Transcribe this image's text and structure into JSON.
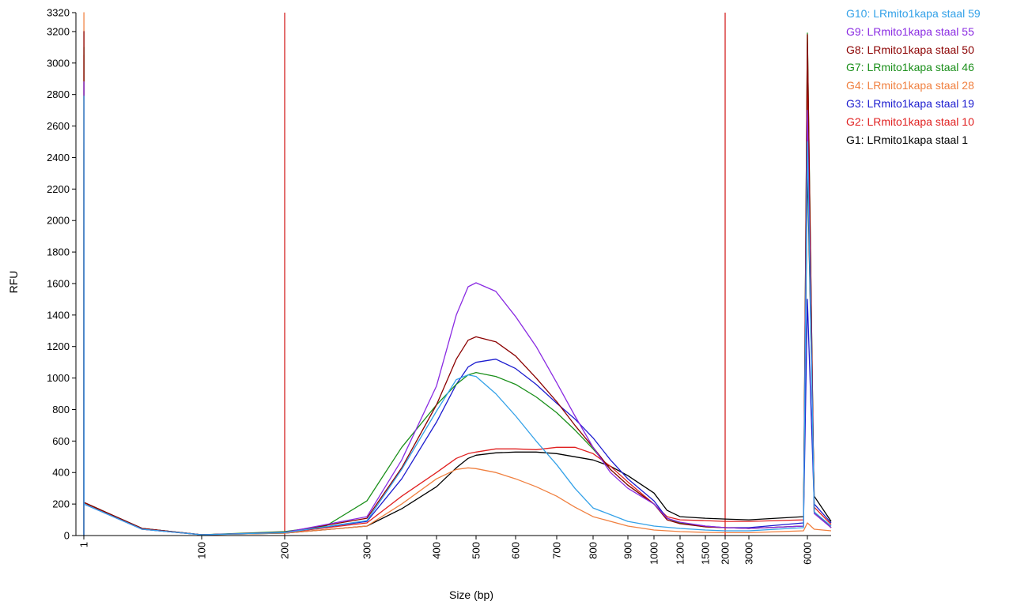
{
  "chart_data": {
    "type": "line",
    "title": "",
    "xlabel": "Size (bp)",
    "ylabel": "RFU",
    "x_scale": "marker-calibrated (non-linear)",
    "ylim": [
      0,
      3320
    ],
    "y_ticks": [
      0,
      200,
      400,
      600,
      800,
      1000,
      1200,
      1400,
      1600,
      1800,
      2000,
      2200,
      2400,
      2600,
      2800,
      3000,
      3200,
      3320
    ],
    "x_ticks": [
      1,
      100,
      200,
      300,
      400,
      500,
      600,
      700,
      800,
      900,
      1000,
      1200,
      1500,
      2000,
      3000,
      6000
    ],
    "grid": false,
    "legend_position": "top-right",
    "smear_range_markers_bp": [
      200,
      2000
    ],
    "marker_color": "#d01010",
    "series": [
      {
        "name": "G10: LRmito1kapa staal 59",
        "color": "#33a1e8",
        "points": [
          [
            1,
            0
          ],
          [
            1.05,
            2790
          ],
          [
            1.1,
            200
          ],
          [
            50,
            40
          ],
          [
            100,
            5
          ],
          [
            200,
            18
          ],
          [
            300,
            95
          ],
          [
            350,
            420
          ],
          [
            400,
            790
          ],
          [
            450,
            990
          ],
          [
            480,
            1020
          ],
          [
            500,
            1010
          ],
          [
            550,
            900
          ],
          [
            600,
            760
          ],
          [
            650,
            600
          ],
          [
            700,
            450
          ],
          [
            750,
            300
          ],
          [
            800,
            175
          ],
          [
            900,
            90
          ],
          [
            1000,
            60
          ],
          [
            1200,
            45
          ],
          [
            1500,
            35
          ],
          [
            2000,
            30
          ],
          [
            3000,
            30
          ],
          [
            5800,
            50
          ],
          [
            6000,
            2500
          ],
          [
            6200,
            150
          ],
          [
            6700,
            60
          ]
        ]
      },
      {
        "name": "G9: LRmito1kapa staal 55",
        "color": "#8a2be2",
        "points": [
          [
            1,
            0
          ],
          [
            1.05,
            2880
          ],
          [
            1.1,
            200
          ],
          [
            50,
            40
          ],
          [
            100,
            5
          ],
          [
            200,
            20
          ],
          [
            300,
            120
          ],
          [
            350,
            480
          ],
          [
            400,
            950
          ],
          [
            450,
            1400
          ],
          [
            480,
            1580
          ],
          [
            500,
            1605
          ],
          [
            550,
            1550
          ],
          [
            600,
            1390
          ],
          [
            650,
            1200
          ],
          [
            700,
            970
          ],
          [
            750,
            760
          ],
          [
            800,
            560
          ],
          [
            850,
            400
          ],
          [
            900,
            300
          ],
          [
            1000,
            200
          ],
          [
            1100,
            110
          ],
          [
            1200,
            85
          ],
          [
            1500,
            60
          ],
          [
            2000,
            50
          ],
          [
            3000,
            45
          ],
          [
            5800,
            60
          ],
          [
            6000,
            2700
          ],
          [
            6200,
            140
          ],
          [
            6700,
            50
          ]
        ]
      },
      {
        "name": "G8: LRmito1kapa staal 50",
        "color": "#8b0000",
        "points": [
          [
            1,
            0
          ],
          [
            1.05,
            3200
          ],
          [
            1.1,
            210
          ],
          [
            50,
            45
          ],
          [
            100,
            5
          ],
          [
            200,
            20
          ],
          [
            300,
            110
          ],
          [
            350,
            430
          ],
          [
            400,
            830
          ],
          [
            450,
            1120
          ],
          [
            480,
            1240
          ],
          [
            500,
            1262
          ],
          [
            550,
            1230
          ],
          [
            600,
            1140
          ],
          [
            650,
            1000
          ],
          [
            700,
            850
          ],
          [
            750,
            700
          ],
          [
            800,
            560
          ],
          [
            850,
            420
          ],
          [
            900,
            320
          ],
          [
            1000,
            200
          ],
          [
            1100,
            100
          ],
          [
            1200,
            75
          ],
          [
            1500,
            55
          ],
          [
            2000,
            50
          ],
          [
            3000,
            45
          ],
          [
            5800,
            60
          ],
          [
            6000,
            3180
          ],
          [
            6200,
            150
          ],
          [
            6700,
            50
          ]
        ]
      },
      {
        "name": "G7: LRmito1kapa staal 46",
        "color": "#1a8f1a",
        "points": [
          [
            1,
            0
          ],
          [
            1.05,
            3100
          ],
          [
            1.1,
            210
          ],
          [
            50,
            45
          ],
          [
            100,
            5
          ],
          [
            200,
            25
          ],
          [
            250,
            60
          ],
          [
            300,
            220
          ],
          [
            350,
            560
          ],
          [
            400,
            830
          ],
          [
            450,
            960
          ],
          [
            480,
            1020
          ],
          [
            500,
            1035
          ],
          [
            550,
            1010
          ],
          [
            600,
            960
          ],
          [
            650,
            880
          ],
          [
            700,
            780
          ],
          [
            750,
            670
          ],
          [
            800,
            550
          ],
          [
            850,
            420
          ],
          [
            900,
            320
          ],
          [
            1000,
            200
          ],
          [
            1100,
            110
          ],
          [
            1200,
            80
          ],
          [
            1500,
            55
          ],
          [
            2000,
            50
          ],
          [
            3000,
            45
          ],
          [
            5800,
            60
          ],
          [
            6000,
            3190
          ],
          [
            6200,
            150
          ],
          [
            6700,
            50
          ]
        ]
      },
      {
        "name": "G4: LRmito1kapa staal 28",
        "color": "#f08040",
        "points": [
          [
            1,
            0
          ],
          [
            1.05,
            3320
          ],
          [
            1.1,
            210
          ],
          [
            50,
            40
          ],
          [
            100,
            5
          ],
          [
            200,
            15
          ],
          [
            300,
            60
          ],
          [
            350,
            200
          ],
          [
            400,
            360
          ],
          [
            450,
            420
          ],
          [
            480,
            430
          ],
          [
            500,
            425
          ],
          [
            550,
            400
          ],
          [
            600,
            360
          ],
          [
            650,
            310
          ],
          [
            700,
            250
          ],
          [
            750,
            180
          ],
          [
            800,
            120
          ],
          [
            900,
            60
          ],
          [
            1000,
            35
          ],
          [
            1200,
            25
          ],
          [
            1500,
            20
          ],
          [
            2000,
            18
          ],
          [
            3000,
            18
          ],
          [
            5800,
            30
          ],
          [
            6000,
            80
          ],
          [
            6200,
            40
          ],
          [
            6700,
            30
          ]
        ]
      },
      {
        "name": "G3: LRmito1kapa staal 19",
        "color": "#1c1ccf",
        "points": [
          [
            1,
            0
          ],
          [
            1.05,
            2880
          ],
          [
            1.1,
            210
          ],
          [
            50,
            45
          ],
          [
            100,
            5
          ],
          [
            200,
            20
          ],
          [
            300,
            90
          ],
          [
            350,
            360
          ],
          [
            400,
            720
          ],
          [
            450,
            960
          ],
          [
            480,
            1070
          ],
          [
            500,
            1100
          ],
          [
            550,
            1120
          ],
          [
            600,
            1060
          ],
          [
            650,
            960
          ],
          [
            700,
            840
          ],
          [
            750,
            740
          ],
          [
            800,
            620
          ],
          [
            850,
            480
          ],
          [
            900,
            360
          ],
          [
            1000,
            220
          ],
          [
            1100,
            110
          ],
          [
            1200,
            80
          ],
          [
            1500,
            60
          ],
          [
            2000,
            50
          ],
          [
            3000,
            50
          ],
          [
            5800,
            80
          ],
          [
            6000,
            1500
          ],
          [
            6200,
            200
          ],
          [
            6700,
            80
          ]
        ]
      },
      {
        "name": "G2: LRmito1kapa staal 10",
        "color": "#e02020",
        "points": [
          [
            1,
            0
          ],
          [
            1.05,
            3050
          ],
          [
            1.1,
            210
          ],
          [
            50,
            45
          ],
          [
            100,
            5
          ],
          [
            200,
            18
          ],
          [
            300,
            80
          ],
          [
            350,
            250
          ],
          [
            400,
            400
          ],
          [
            450,
            490
          ],
          [
            480,
            520
          ],
          [
            500,
            530
          ],
          [
            550,
            550
          ],
          [
            600,
            550
          ],
          [
            650,
            545
          ],
          [
            700,
            560
          ],
          [
            750,
            560
          ],
          [
            800,
            520
          ],
          [
            850,
            440
          ],
          [
            900,
            340
          ],
          [
            1000,
            200
          ],
          [
            1100,
            120
          ],
          [
            1200,
            100
          ],
          [
            1500,
            95
          ],
          [
            2000,
            90
          ],
          [
            3000,
            90
          ],
          [
            5800,
            100
          ],
          [
            6000,
            2860
          ],
          [
            6200,
            180
          ],
          [
            6700,
            70
          ]
        ]
      },
      {
        "name": "G1: LRmito1kapa staal 1",
        "color": "#000000",
        "points": [
          [
            1,
            0
          ],
          [
            1.05,
            2450
          ],
          [
            1.1,
            210
          ],
          [
            50,
            40
          ],
          [
            100,
            5
          ],
          [
            200,
            15
          ],
          [
            300,
            60
          ],
          [
            350,
            170
          ],
          [
            400,
            310
          ],
          [
            450,
            430
          ],
          [
            480,
            490
          ],
          [
            500,
            510
          ],
          [
            550,
            525
          ],
          [
            600,
            530
          ],
          [
            650,
            530
          ],
          [
            700,
            520
          ],
          [
            750,
            500
          ],
          [
            800,
            480
          ],
          [
            850,
            440
          ],
          [
            900,
            380
          ],
          [
            1000,
            270
          ],
          [
            1100,
            160
          ],
          [
            1200,
            120
          ],
          [
            1500,
            110
          ],
          [
            2000,
            105
          ],
          [
            3000,
            100
          ],
          [
            5800,
            120
          ],
          [
            6000,
            2360
          ],
          [
            6200,
            250
          ],
          [
            6700,
            90
          ]
        ]
      }
    ]
  }
}
